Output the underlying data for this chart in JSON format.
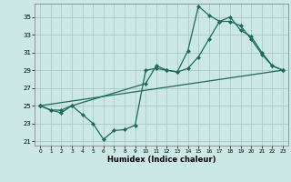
{
  "xlabel": "Humidex (Indice chaleur)",
  "ylabel": "",
  "xlim": [
    -0.5,
    23.5
  ],
  "ylim": [
    20.5,
    36.5
  ],
  "yticks": [
    21,
    23,
    25,
    27,
    29,
    31,
    33,
    35
  ],
  "xticks": [
    0,
    1,
    2,
    3,
    4,
    5,
    6,
    7,
    8,
    9,
    10,
    11,
    12,
    13,
    14,
    15,
    16,
    17,
    18,
    19,
    20,
    21,
    22,
    23
  ],
  "bg_color": "#cce8e4",
  "grid_color": "#aac8c4",
  "line_color": "#1a6b5a",
  "line1_x": [
    0,
    1,
    2,
    3,
    4,
    5,
    6,
    7,
    8,
    9,
    10,
    11,
    12,
    13,
    14,
    15,
    16,
    17,
    18,
    19,
    20,
    21,
    22,
    23
  ],
  "line1_y": [
    25.0,
    24.5,
    24.2,
    25.0,
    24.0,
    23.0,
    21.2,
    22.2,
    22.3,
    22.8,
    29.0,
    29.2,
    29.0,
    28.8,
    31.2,
    36.2,
    35.2,
    34.5,
    35.0,
    33.5,
    32.8,
    31.0,
    29.5,
    29.0
  ],
  "line2_x": [
    0,
    1,
    2,
    3,
    10,
    11,
    12,
    13,
    14,
    15,
    16,
    17,
    18,
    19,
    20,
    21,
    22,
    23
  ],
  "line2_y": [
    25.0,
    24.5,
    24.5,
    25.0,
    27.5,
    29.5,
    29.0,
    28.8,
    29.2,
    30.5,
    32.5,
    34.5,
    34.5,
    34.0,
    32.5,
    30.8,
    29.5,
    29.0
  ],
  "line3_x": [
    0,
    23
  ],
  "line3_y": [
    25.0,
    29.0
  ]
}
